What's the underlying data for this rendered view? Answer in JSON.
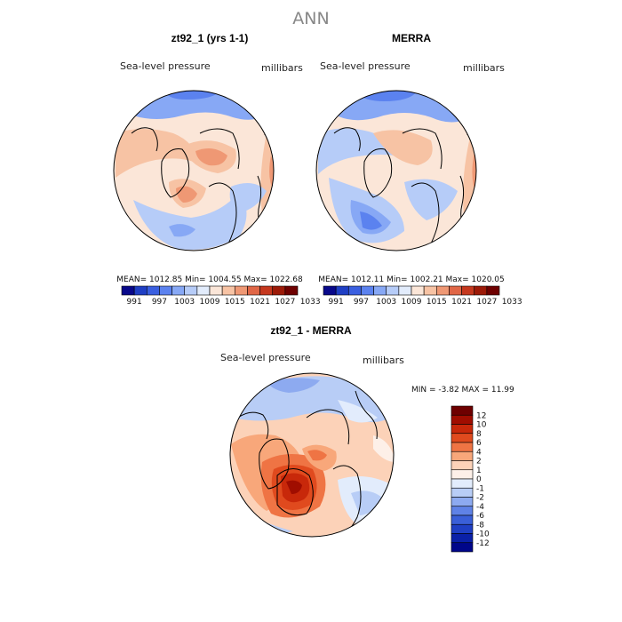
{
  "title": "ANN",
  "colors": {
    "abs_levels": [
      "#08088a",
      "#1f3fc4",
      "#3a5fe0",
      "#5b82ef",
      "#87a8f5",
      "#b6ccf8",
      "#e2ecfc",
      "#fbe6d8",
      "#f7c3a4",
      "#ef9874",
      "#e06646",
      "#c5381e",
      "#9c1a08",
      "#6e0000"
    ],
    "diff_levels": [
      "#6e0000",
      "#a00d00",
      "#c8280a",
      "#e04a1e",
      "#ef7444",
      "#f8a77a",
      "#fcd2b8",
      "#fdf0e8",
      "#e2ecfc",
      "#b8cdf6",
      "#8daaf0",
      "#5f82e6",
      "#3a5fd8",
      "#1f3fc4",
      "#0a20a8",
      "#00068a"
    ]
  },
  "chart_data": [
    {
      "type": "heatmap",
      "title": "zt92_1 (yrs 1-1)",
      "left_label": "Sea-level pressure",
      "right_label": "millibars",
      "stats": "MEAN= 1012.85   Min= 1004.55   Max= 1022.68",
      "colorbar_ticks": [
        "991",
        "997",
        "1003",
        "1009",
        "1015",
        "1021",
        "1027",
        "1033"
      ]
    },
    {
      "type": "heatmap",
      "title": "MERRA",
      "left_label": "Sea-level pressure",
      "right_label": "millibars",
      "stats": "MEAN= 1012.11   Min= 1002.21   Max= 1020.05",
      "colorbar_ticks": [
        "991",
        "997",
        "1003",
        "1009",
        "1015",
        "1021",
        "1027",
        "1033"
      ]
    },
    {
      "type": "heatmap",
      "title": "zt92_1 - MERRA",
      "left_label": "Sea-level pressure",
      "right_label": "millibars",
      "stats": "MIN =   -3.82  MAX =   11.99",
      "colorbar_ticks": [
        "12",
        "10",
        "8",
        "6",
        "4",
        "2",
        "1",
        "0",
        "-1",
        "-2",
        "-4",
        "-6",
        "-8",
        "-10",
        "-12"
      ]
    }
  ]
}
